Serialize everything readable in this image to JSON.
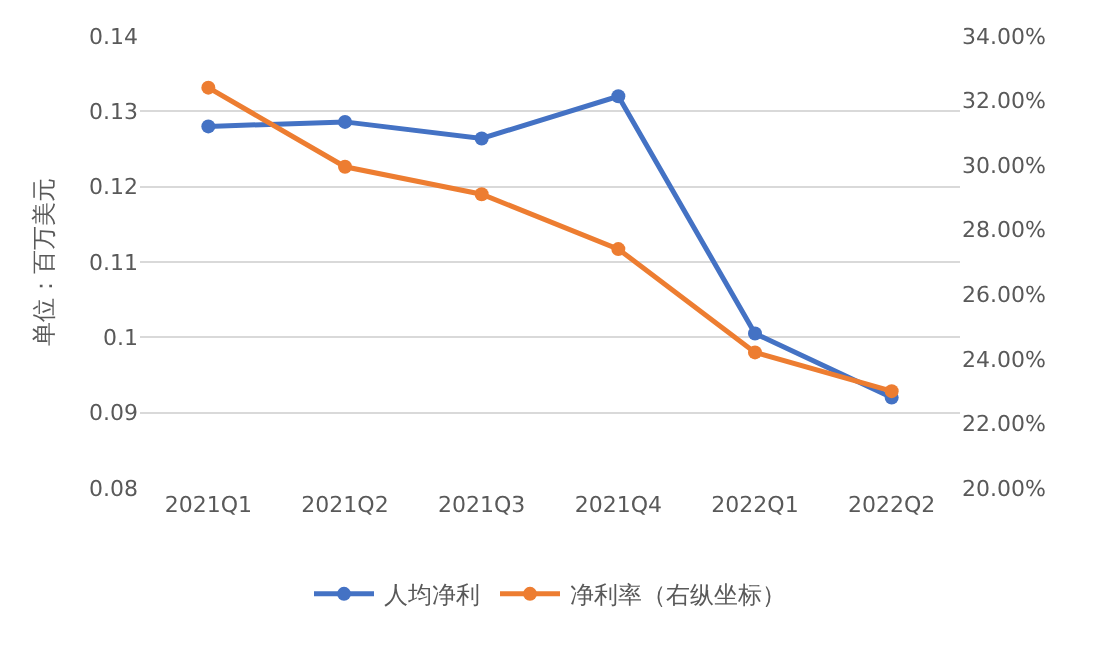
{
  "chart_data": {
    "type": "line",
    "ylabel": "单位：百万美元",
    "categories": [
      "2021Q1",
      "2021Q2",
      "2021Q3",
      "2021Q4",
      "2022Q1",
      "2022Q2"
    ],
    "series": [
      {
        "name": "人均净利",
        "color": "#4472c4",
        "values": [
          0.128,
          0.1286,
          0.1264,
          0.132,
          0.1005,
          0.092
        ]
      },
      {
        "name": "净利率（右纵坐标）",
        "color": "#ed7d31",
        "axis": "y2",
        "values": [
          32.4,
          29.95,
          29.1,
          27.4,
          24.2,
          23.0
        ]
      }
    ],
    "ylim": [
      0.08,
      0.14
    ],
    "yticks": [
      0.08,
      0.09,
      {
        "value": 0.1,
        "label": "0.1"
      },
      0.11,
      0.12,
      0.13,
      0.14
    ],
    "y2lim": [
      20,
      34
    ],
    "y2ticks": [
      {
        "value": 20,
        "label": "20.00%"
      },
      {
        "value": 22,
        "label": "22.00%"
      },
      {
        "value": 24,
        "label": "24.00%"
      },
      {
        "value": 26,
        "label": "26.00%"
      },
      {
        "value": 28,
        "label": "28.00%"
      },
      {
        "value": 30,
        "label": "30.00%"
      },
      {
        "value": 32,
        "label": "32.00%"
      },
      {
        "value": 34,
        "label": "34.00%"
      }
    ],
    "grid": "y",
    "legend": "bottom",
    "marker": "circle",
    "line_style": "solid"
  }
}
